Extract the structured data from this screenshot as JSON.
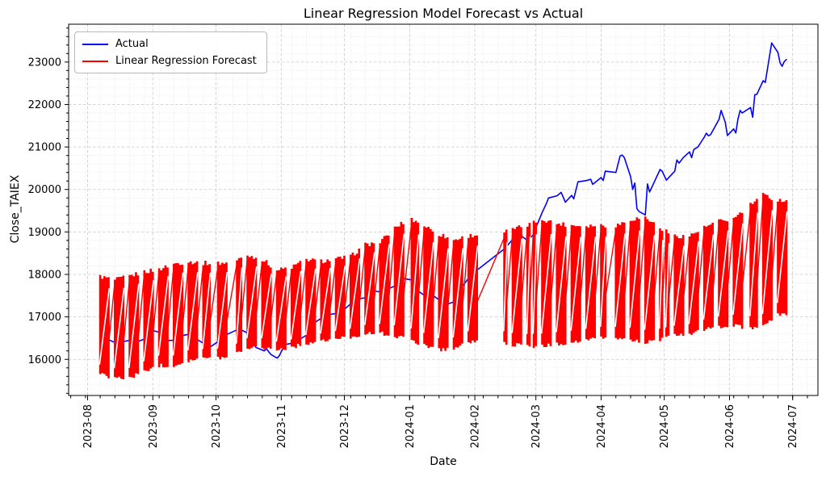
{
  "figure": {
    "title": "Linear Regression Model Forecast vs Actual",
    "xlabel": "Date",
    "ylabel": "Close_TAIEX"
  },
  "legend": {
    "position": "upper left",
    "items": [
      {
        "label": "Actual",
        "color": "#0000ff"
      },
      {
        "label": "Linear Regression Forecast",
        "color": "#ff0000"
      }
    ]
  },
  "chart_data": {
    "type": "line",
    "title": "Linear Regression Model Forecast vs Actual",
    "xlabel": "Date",
    "ylabel": "Close_TAIEX",
    "xlim": [
      "2023-07-23",
      "2024-07-13"
    ],
    "ylim": [
      15150,
      23890
    ],
    "grid": true,
    "x_tick_labels": [
      "2023-08",
      "2023-09",
      "2023-10",
      "2023-11",
      "2023-12",
      "2024-01",
      "2024-02",
      "2024-03",
      "2024-04",
      "2024-05",
      "2024-06",
      "2024-07"
    ],
    "x_tick_dates": [
      "2023-08-01",
      "2023-09-01",
      "2023-10-01",
      "2023-11-01",
      "2023-12-01",
      "2024-01-01",
      "2024-02-01",
      "2024-03-01",
      "2024-04-01",
      "2024-05-01",
      "2024-06-01",
      "2024-07-01"
    ],
    "y_major_ticks": [
      16000,
      17000,
      18000,
      19000,
      20000,
      21000,
      22000,
      23000
    ],
    "y_minor_step": 200,
    "x_minor": "weekly-monday",
    "series": [
      {
        "name": "Actual",
        "color": "#0000ff",
        "points": [
          [
            "2023-08-08",
            16560
          ],
          [
            "2023-08-10",
            16480
          ],
          [
            "2023-08-14",
            16400
          ],
          [
            "2023-08-16",
            16350
          ],
          [
            "2023-08-18",
            16420
          ],
          [
            "2023-08-22",
            16460
          ],
          [
            "2023-08-24",
            16400
          ],
          [
            "2023-08-28",
            16480
          ],
          [
            "2023-08-30",
            16560
          ],
          [
            "2023-09-01",
            16680
          ],
          [
            "2023-09-04",
            16640
          ],
          [
            "2023-09-05",
            16470
          ],
          [
            "2023-09-07",
            16440
          ],
          [
            "2023-09-11",
            16450
          ],
          [
            "2023-09-13",
            16520
          ],
          [
            "2023-09-15",
            16560
          ],
          [
            "2023-09-18",
            16590
          ],
          [
            "2023-09-20",
            16620
          ],
          [
            "2023-09-22",
            16470
          ],
          [
            "2023-09-25",
            16380
          ],
          [
            "2023-09-27",
            16320
          ],
          [
            "2023-09-28",
            16285
          ],
          [
            "2023-10-02",
            16420
          ],
          [
            "2023-10-04",
            16600
          ],
          [
            "2023-10-05",
            16560
          ],
          [
            "2023-10-11",
            16695
          ],
          [
            "2023-10-12",
            16720
          ],
          [
            "2023-10-16",
            16620
          ],
          [
            "2023-10-18",
            16480
          ],
          [
            "2023-10-20",
            16280
          ],
          [
            "2023-10-24",
            16200
          ],
          [
            "2023-10-25",
            16250
          ],
          [
            "2023-10-27",
            16120
          ],
          [
            "2023-10-30",
            16030
          ],
          [
            "2023-10-31",
            16080
          ],
          [
            "2023-11-01",
            16180
          ],
          [
            "2023-11-03",
            16350
          ],
          [
            "2023-11-06",
            16380
          ],
          [
            "2023-11-08",
            16450
          ],
          [
            "2023-11-10",
            16480
          ],
          [
            "2023-11-14",
            16600
          ],
          [
            "2023-11-15",
            16750
          ],
          [
            "2023-11-17",
            16870
          ],
          [
            "2023-11-21",
            17000
          ],
          [
            "2023-11-23",
            17050
          ],
          [
            "2023-11-27",
            17080
          ],
          [
            "2023-11-29",
            17020
          ],
          [
            "2023-12-01",
            17180
          ],
          [
            "2023-12-05",
            17350
          ],
          [
            "2023-12-07",
            17420
          ],
          [
            "2023-12-11",
            17450
          ],
          [
            "2023-12-13",
            17530
          ],
          [
            "2023-12-15",
            17610
          ],
          [
            "2023-12-19",
            17580
          ],
          [
            "2023-12-21",
            17640
          ],
          [
            "2023-12-26",
            17750
          ],
          [
            "2023-12-28",
            17910
          ],
          [
            "2024-01-02",
            17870
          ],
          [
            "2024-01-04",
            17640
          ],
          [
            "2024-01-08",
            17510
          ],
          [
            "2024-01-10",
            17550
          ],
          [
            "2024-01-12",
            17510
          ],
          [
            "2024-01-15",
            17400
          ],
          [
            "2024-01-17",
            17250
          ],
          [
            "2024-01-19",
            17300
          ],
          [
            "2024-01-23",
            17370
          ],
          [
            "2024-01-25",
            17650
          ],
          [
            "2024-01-29",
            17910
          ],
          [
            "2024-01-31",
            18060
          ],
          [
            "2024-02-02",
            18100
          ],
          [
            "2024-02-15",
            18600
          ],
          [
            "2024-02-16",
            18660
          ],
          [
            "2024-02-19",
            18820
          ],
          [
            "2024-02-21",
            18850
          ],
          [
            "2024-02-23",
            18910
          ],
          [
            "2024-02-26",
            18800
          ],
          [
            "2024-02-29",
            18945
          ],
          [
            "2024-03-01",
            19100
          ],
          [
            "2024-03-04",
            19460
          ],
          [
            "2024-03-06",
            19670
          ],
          [
            "2024-03-07",
            19800
          ],
          [
            "2024-03-11",
            19850
          ],
          [
            "2024-03-13",
            19930
          ],
          [
            "2024-03-15",
            19700
          ],
          [
            "2024-03-18",
            19860
          ],
          [
            "2024-03-19",
            19780
          ],
          [
            "2024-03-21",
            20180
          ],
          [
            "2024-03-25",
            20210
          ],
          [
            "2024-03-27",
            20240
          ],
          [
            "2024-03-28",
            20120
          ],
          [
            "2024-04-01",
            20280
          ],
          [
            "2024-04-02",
            20210
          ],
          [
            "2024-04-03",
            20430
          ],
          [
            "2024-04-08",
            20400
          ],
          [
            "2024-04-10",
            20790
          ],
          [
            "2024-04-11",
            20810
          ],
          [
            "2024-04-12",
            20750
          ],
          [
            "2024-04-15",
            20300
          ],
          [
            "2024-04-16",
            20000
          ],
          [
            "2024-04-17",
            20150
          ],
          [
            "2024-04-18",
            19550
          ],
          [
            "2024-04-19",
            19480
          ],
          [
            "2024-04-22",
            19400
          ],
          [
            "2024-04-23",
            20130
          ],
          [
            "2024-04-24",
            19940
          ],
          [
            "2024-04-26",
            20150
          ],
          [
            "2024-04-29",
            20470
          ],
          [
            "2024-04-30",
            20430
          ],
          [
            "2024-05-02",
            20220
          ],
          [
            "2024-05-06",
            20430
          ],
          [
            "2024-05-07",
            20695
          ],
          [
            "2024-05-08",
            20620
          ],
          [
            "2024-05-10",
            20750
          ],
          [
            "2024-05-13",
            20885
          ],
          [
            "2024-05-14",
            20750
          ],
          [
            "2024-05-15",
            20940
          ],
          [
            "2024-05-17",
            21000
          ],
          [
            "2024-05-20",
            21230
          ],
          [
            "2024-05-21",
            21325
          ],
          [
            "2024-05-22",
            21265
          ],
          [
            "2024-05-23",
            21290
          ],
          [
            "2024-05-27",
            21650
          ],
          [
            "2024-05-28",
            21860
          ],
          [
            "2024-05-30",
            21575
          ],
          [
            "2024-05-31",
            21270
          ],
          [
            "2024-06-03",
            21425
          ],
          [
            "2024-06-04",
            21330
          ],
          [
            "2024-06-05",
            21650
          ],
          [
            "2024-06-06",
            21860
          ],
          [
            "2024-06-07",
            21800
          ],
          [
            "2024-06-11",
            21930
          ],
          [
            "2024-06-12",
            21700
          ],
          [
            "2024-06-13",
            22230
          ],
          [
            "2024-06-14",
            22240
          ],
          [
            "2024-06-17",
            22560
          ],
          [
            "2024-06-18",
            22520
          ],
          [
            "2024-06-20",
            23130
          ],
          [
            "2024-06-21",
            23450
          ],
          [
            "2024-06-24",
            23225
          ],
          [
            "2024-06-25",
            22980
          ],
          [
            "2024-06-26",
            22900
          ],
          [
            "2024-06-27",
            23010
          ],
          [
            "2024-06-28",
            23060
          ]
        ]
      },
      {
        "name": "Linear Regression Forecast",
        "color": "#ff0000",
        "pattern": "intraday high-low oscillation on trading days (Mon-Fri), appears as solid red weekly bands between low and high envelopes with rising diagonal connectors across weekend/holiday gaps",
        "start": "2023-08-07",
        "end": "2024-06-28",
        "holidays": [
          "2023-09-29",
          "2023-10-09",
          "2023-10-10",
          "2024-01-01",
          "2024-02-05",
          "2024-02-06",
          "2024-02-07",
          "2024-02-08",
          "2024-02-09",
          "2024-02-12",
          "2024-02-13",
          "2024-02-14",
          "2024-02-28",
          "2024-04-04",
          "2024-04-05",
          "2024-05-01",
          "2024-06-10"
        ],
        "envelope": [
          [
            "2023-08-07",
            15650,
            17950
          ],
          [
            "2023-08-14",
            15560,
            17870
          ],
          [
            "2023-08-21",
            15560,
            17960
          ],
          [
            "2023-08-28",
            15720,
            18060
          ],
          [
            "2023-09-04",
            15860,
            18120
          ],
          [
            "2023-09-11",
            15850,
            18250
          ],
          [
            "2023-09-18",
            15980,
            18300
          ],
          [
            "2023-09-25",
            16020,
            18270
          ],
          [
            "2023-10-02",
            16030,
            18260
          ],
          [
            "2023-10-09",
            16100,
            18290
          ],
          [
            "2023-10-16",
            16280,
            18450
          ],
          [
            "2023-10-23",
            16290,
            18360
          ],
          [
            "2023-10-30",
            16230,
            18100
          ],
          [
            "2023-11-06",
            16280,
            18170
          ],
          [
            "2023-11-13",
            16380,
            18350
          ],
          [
            "2023-11-20",
            16420,
            18310
          ],
          [
            "2023-11-27",
            16480,
            18360
          ],
          [
            "2023-12-04",
            16530,
            18420
          ],
          [
            "2023-12-11",
            16600,
            18700
          ],
          [
            "2023-12-18",
            16620,
            18760
          ],
          [
            "2023-12-25",
            16550,
            19090
          ],
          [
            "2024-01-01",
            16460,
            19330
          ],
          [
            "2024-01-08",
            16340,
            19150
          ],
          [
            "2024-01-15",
            16230,
            18950
          ],
          [
            "2024-01-22",
            16260,
            18810
          ],
          [
            "2024-01-29",
            16410,
            18910
          ],
          [
            "2024-02-15",
            16400,
            19000
          ],
          [
            "2024-02-19",
            16350,
            19060
          ],
          [
            "2024-02-26",
            16310,
            19160
          ],
          [
            "2024-03-04",
            16310,
            19300
          ],
          [
            "2024-03-11",
            16360,
            19200
          ],
          [
            "2024-03-18",
            16400,
            19160
          ],
          [
            "2024-03-25",
            16450,
            19150
          ],
          [
            "2024-04-01",
            16500,
            19160
          ],
          [
            "2024-04-08",
            16500,
            19150
          ],
          [
            "2024-04-15",
            16460,
            19300
          ],
          [
            "2024-04-22",
            16400,
            19340
          ],
          [
            "2024-04-29",
            16460,
            19100
          ],
          [
            "2024-05-06",
            16560,
            18900
          ],
          [
            "2024-05-13",
            16600,
            18910
          ],
          [
            "2024-05-20",
            16700,
            19100
          ],
          [
            "2024-05-27",
            16760,
            19250
          ],
          [
            "2024-06-03",
            16800,
            19310
          ],
          [
            "2024-06-10",
            16720,
            19600
          ],
          [
            "2024-06-17",
            16760,
            19870
          ],
          [
            "2024-06-24",
            17060,
            19750
          ]
        ]
      }
    ]
  }
}
